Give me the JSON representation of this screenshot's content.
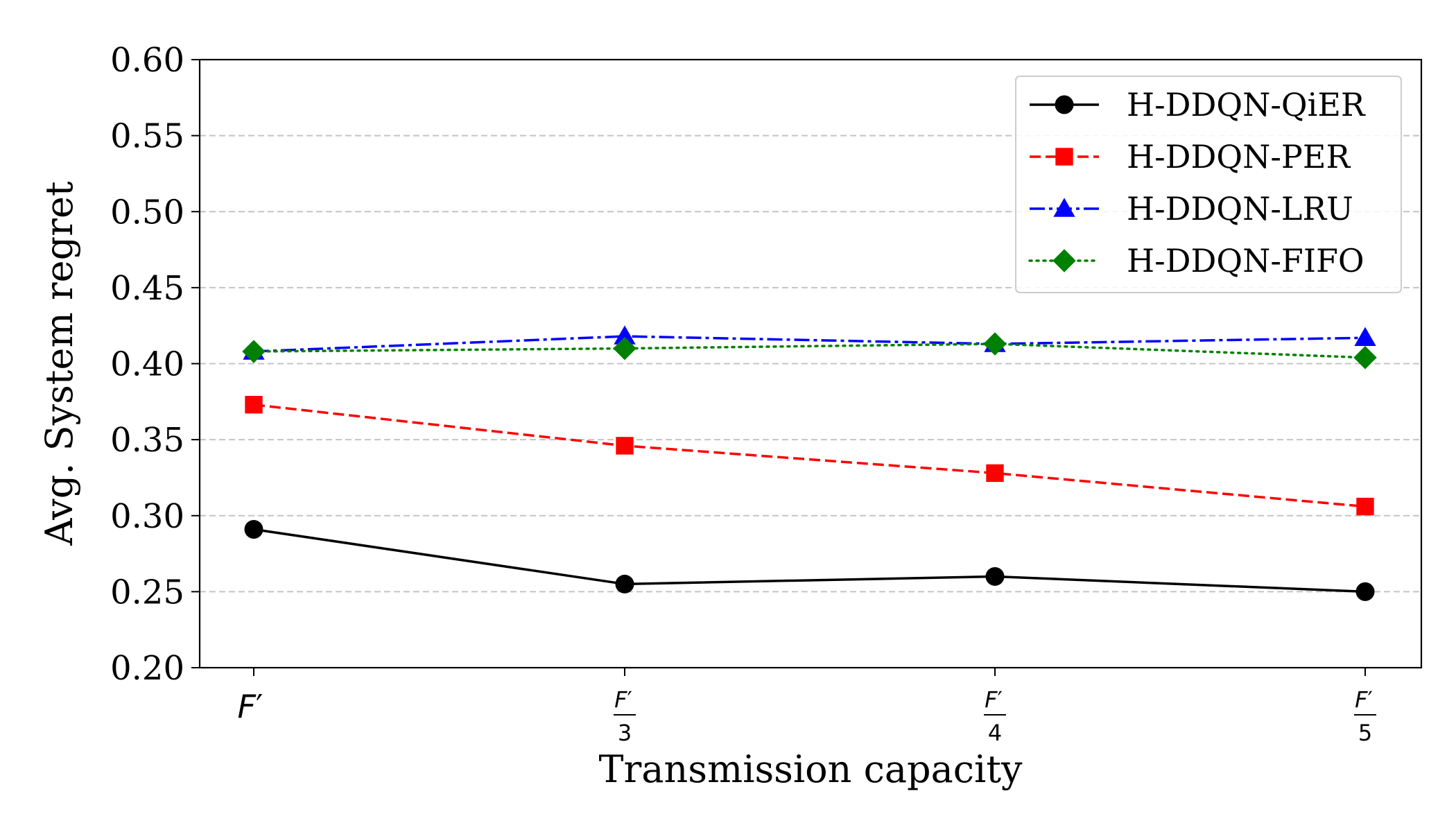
{
  "chart_data": {
    "type": "line",
    "title": "",
    "xlabel": "Transmission capacity",
    "ylabel": "Avg. System regret",
    "ylim": [
      0.2,
      0.6
    ],
    "yticks": [
      "0.20",
      "0.25",
      "0.30",
      "0.35",
      "0.40",
      "0.45",
      "0.50",
      "0.55",
      "0.60"
    ],
    "ytick_values": [
      0.2,
      0.25,
      0.3,
      0.35,
      0.4,
      0.45,
      0.5,
      0.55,
      0.6
    ],
    "grid": "y-dashed",
    "legend_position": "top-right",
    "categories": [
      {
        "base": "F",
        "prime": "′",
        "denominator": ""
      },
      {
        "base": "F",
        "prime": "′",
        "denominator": "3"
      },
      {
        "base": "F",
        "prime": "′",
        "denominator": "4"
      },
      {
        "base": "F",
        "prime": "′",
        "denominator": "5"
      }
    ],
    "series": [
      {
        "name": "H-DDQN-QiER",
        "values": [
          0.291,
          0.255,
          0.26,
          0.25
        ],
        "color": "#000000",
        "dash": "solid",
        "marker": "circle"
      },
      {
        "name": "H-DDQN-PER",
        "values": [
          0.373,
          0.346,
          0.328,
          0.306
        ],
        "color": "#ff0000",
        "dash": "dashed",
        "marker": "square"
      },
      {
        "name": "H-DDQN-LRU",
        "values": [
          0.408,
          0.418,
          0.413,
          0.417
        ],
        "color": "#0000ff",
        "dash": "dashdot",
        "marker": "triangle"
      },
      {
        "name": "H-DDQN-FIFO",
        "values": [
          0.408,
          0.41,
          0.413,
          0.404
        ],
        "color": "#008000",
        "dash": "dotted",
        "marker": "diamond"
      }
    ]
  }
}
